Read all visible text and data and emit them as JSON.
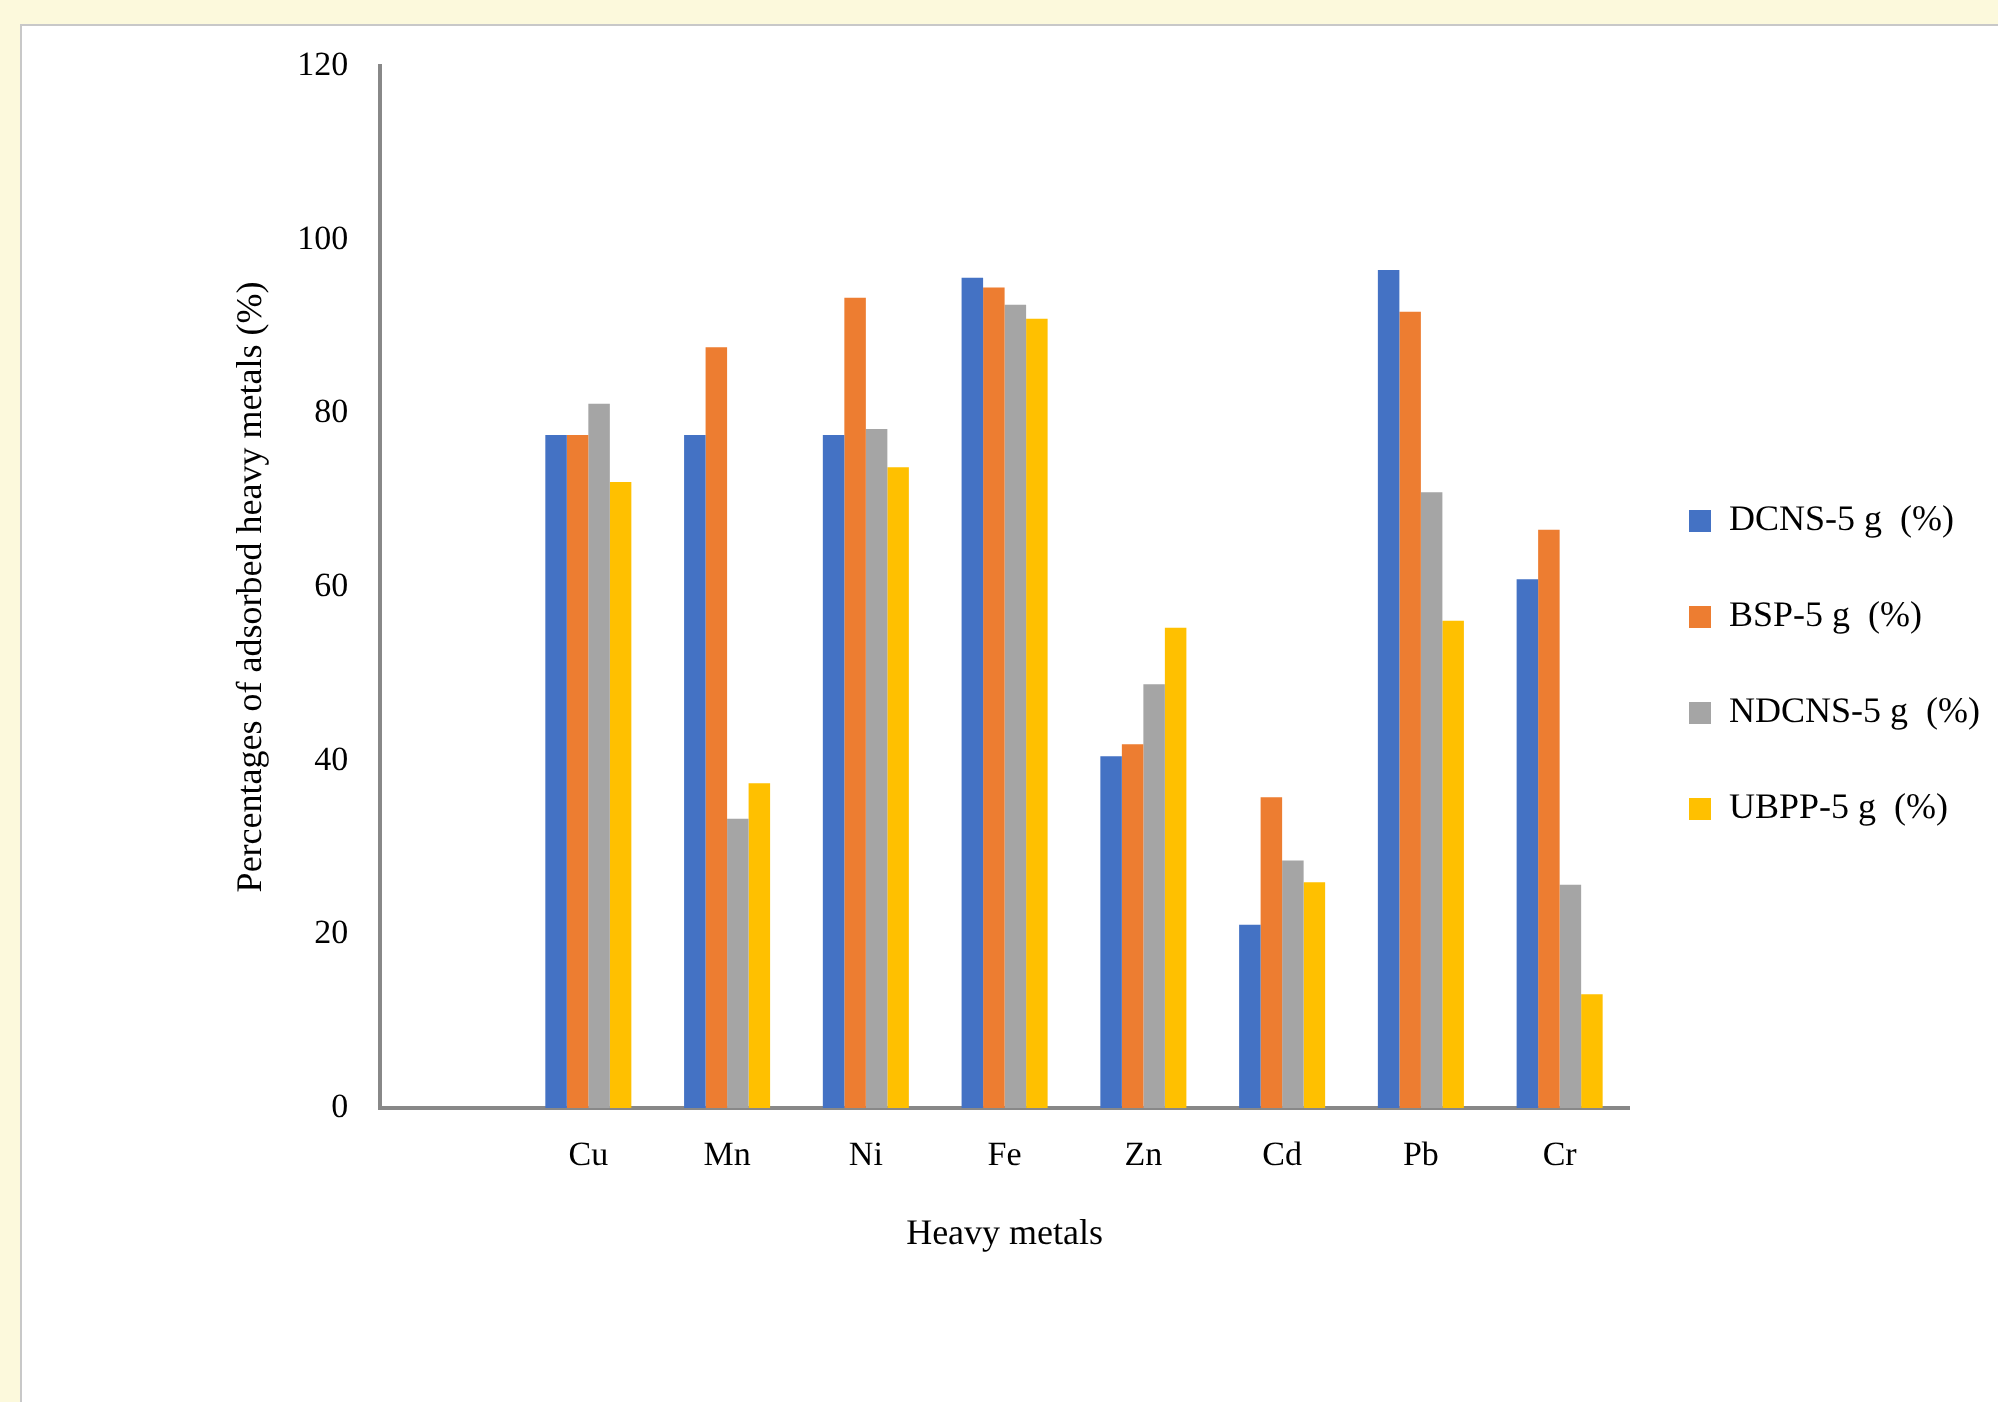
{
  "chart_data": {
    "type": "bar",
    "xlabel": "Heavy metals",
    "ylabel": "Percentages of adsorbed heavy metals (%)",
    "categories": [
      null,
      "Cu",
      "Mn",
      "Ni",
      "Fe",
      "Zn",
      "Cd",
      "Pb",
      "Cr"
    ],
    "series": [
      {
        "name": "DCNS-5 g  (%)",
        "color": "#4472c4",
        "values": [
          null,
          77.5,
          77.5,
          77.5,
          95.6,
          40.5,
          21.1,
          96.5,
          60.9
        ]
      },
      {
        "name": "BSP-5 g  (%)",
        "color": "#ed7d31",
        "values": [
          null,
          77.5,
          87.6,
          93.3,
          94.5,
          41.9,
          35.8,
          91.7,
          66.6
        ]
      },
      {
        "name": "NDCNS-5 g  (%)",
        "color": "#a5a5a5",
        "values": [
          null,
          81.1,
          33.3,
          78.2,
          92.5,
          48.8,
          28.5,
          70.9,
          25.7
        ]
      },
      {
        "name": "UBPP-5 g  (%)",
        "color": "#ffc000",
        "values": [
          null,
          72.1,
          37.4,
          73.8,
          90.9,
          55.3,
          26.0,
          56.1,
          13.1
        ]
      }
    ],
    "ylim": [
      0,
      120
    ],
    "yticks": [
      0,
      20,
      40,
      60,
      80,
      100,
      120
    ],
    "grid": false,
    "legend": "right"
  }
}
